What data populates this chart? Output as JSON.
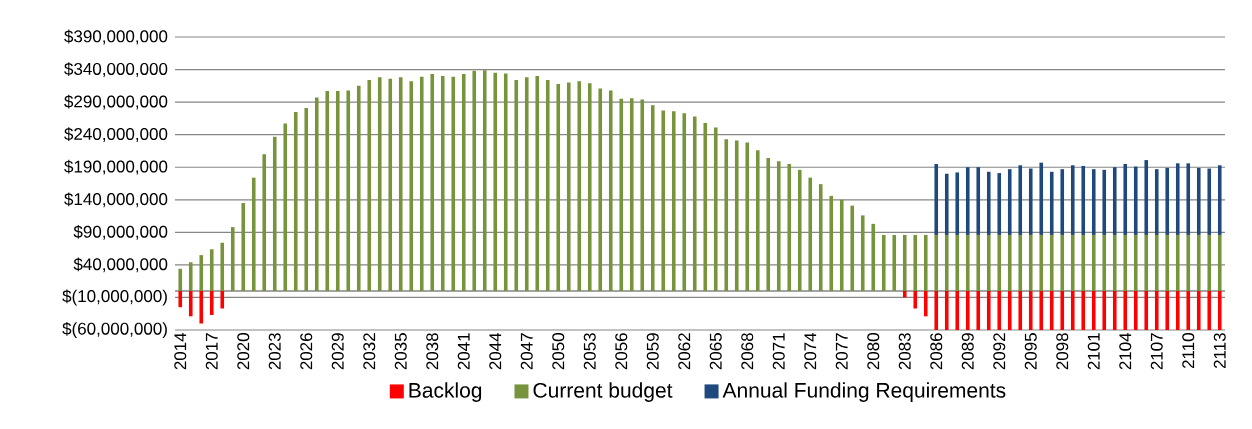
{
  "chart_data": {
    "type": "bar",
    "stacked": true,
    "categories": [
      "2014",
      null,
      null,
      "2017",
      null,
      null,
      "2020",
      null,
      null,
      "2023",
      null,
      null,
      "2026",
      null,
      null,
      "2029",
      null,
      null,
      "2032",
      null,
      null,
      "2035",
      null,
      null,
      "2038",
      null,
      null,
      "2041",
      null,
      null,
      "2044",
      null,
      null,
      "2047",
      null,
      null,
      "2050",
      null,
      null,
      "2053",
      null,
      null,
      "2056",
      null,
      null,
      "2059",
      null,
      null,
      "2062",
      null,
      null,
      "2065",
      null,
      null,
      "2068",
      null,
      null,
      "2071",
      null,
      null,
      "2074",
      null,
      null,
      "2077",
      null,
      null,
      "2080",
      null,
      null,
      "2083",
      null,
      null,
      "2086",
      null,
      null,
      "2089",
      null,
      null,
      "2092",
      null,
      null,
      "2095",
      null,
      null,
      "2098",
      null,
      null,
      "2101",
      null,
      null,
      "2104",
      null,
      null,
      "2107",
      null,
      null,
      "2110",
      null,
      null,
      "2113"
    ],
    "series": [
      {
        "name": "Backlog",
        "color": "#ff0000",
        "values": [
          -25000000,
          -39000000,
          -50000000,
          -37000000,
          -27000000,
          null,
          null,
          null,
          null,
          null,
          null,
          null,
          null,
          null,
          null,
          null,
          null,
          null,
          null,
          null,
          null,
          null,
          null,
          null,
          null,
          null,
          null,
          null,
          null,
          null,
          null,
          null,
          null,
          null,
          null,
          null,
          null,
          null,
          null,
          null,
          null,
          null,
          null,
          null,
          null,
          null,
          null,
          null,
          null,
          null,
          null,
          null,
          null,
          null,
          null,
          null,
          null,
          null,
          null,
          null,
          null,
          null,
          null,
          null,
          null,
          null,
          null,
          null,
          null,
          -10000000,
          -27000000,
          -39000000,
          -60000000,
          -60000000,
          -60000000,
          -60000000,
          -60000000,
          -60000000,
          -60000000,
          -60000000,
          -60000000,
          -60000000,
          -60000000,
          -60000000,
          -60000000,
          -60000000,
          -60000000,
          -60000000,
          -60000000,
          -60000000,
          -60000000,
          -60000000,
          -60000000,
          -60000000,
          -60000000,
          -60000000,
          -60000000,
          -60000000,
          -60000000,
          -60000000
        ]
      },
      {
        "name": "Current budget",
        "color": "#77933c",
        "values": [
          34000000,
          44000000,
          55000000,
          64000000,
          74000000,
          98000000,
          135000000,
          174000000,
          210000000,
          237000000,
          257000000,
          275000000,
          281000000,
          297000000,
          307000000,
          307000000,
          308000000,
          315000000,
          324000000,
          328000000,
          326000000,
          328000000,
          322000000,
          329000000,
          333000000,
          330000000,
          329000000,
          333000000,
          338000000,
          339000000,
          335000000,
          334000000,
          324000000,
          328000000,
          330000000,
          324000000,
          318000000,
          320000000,
          322000000,
          319000000,
          311000000,
          308000000,
          295000000,
          296000000,
          294000000,
          285000000,
          277000000,
          276000000,
          273000000,
          268000000,
          258000000,
          251000000,
          233000000,
          231000000,
          228000000,
          216000000,
          204000000,
          199000000,
          195000000,
          186000000,
          174000000,
          164000000,
          146000000,
          140000000,
          131000000,
          116000000,
          103000000,
          86000000,
          86000000,
          86000000,
          86000000,
          86000000,
          86000000,
          86000000,
          86000000,
          86000000,
          86000000,
          86000000,
          86000000,
          86000000,
          86000000,
          86000000,
          86000000,
          86000000,
          86000000,
          86000000,
          86000000,
          86000000,
          86000000,
          86000000,
          86000000,
          86000000,
          86000000,
          86000000,
          86000000,
          86000000,
          86000000,
          86000000,
          86000000,
          86000000
        ]
      },
      {
        "name": "Annual Funding Requirements",
        "color": "#1f497d",
        "values": [
          null,
          null,
          null,
          null,
          null,
          null,
          null,
          null,
          null,
          null,
          null,
          null,
          null,
          null,
          null,
          null,
          null,
          null,
          null,
          null,
          null,
          null,
          null,
          null,
          null,
          null,
          null,
          null,
          null,
          null,
          null,
          null,
          null,
          null,
          null,
          null,
          null,
          null,
          null,
          null,
          null,
          null,
          null,
          null,
          null,
          null,
          null,
          null,
          null,
          null,
          null,
          null,
          null,
          null,
          null,
          null,
          null,
          null,
          null,
          null,
          null,
          null,
          null,
          null,
          null,
          null,
          null,
          null,
          null,
          null,
          null,
          null,
          109000000,
          94000000,
          96000000,
          104000000,
          104000000,
          97000000,
          95000000,
          101000000,
          107000000,
          102000000,
          111000000,
          97000000,
          101000000,
          107000000,
          106000000,
          101000000,
          100000000,
          104000000,
          109000000,
          105000000,
          115000000,
          101000000,
          103000000,
          110000000,
          110000000,
          103000000,
          102000000,
          107000000
        ]
      }
    ],
    "ylim": [
      -60000000,
      390000000
    ],
    "yticks": [
      {
        "value": -60000000,
        "label": "$(60,000,000)"
      },
      {
        "value": -10000000,
        "label": "$(10,000,000)"
      },
      {
        "value": 40000000,
        "label": "$40,000,000"
      },
      {
        "value": 90000000,
        "label": "$90,000,000"
      },
      {
        "value": 140000000,
        "label": "$140,000,000"
      },
      {
        "value": 190000000,
        "label": "$190,000,000"
      },
      {
        "value": 240000000,
        "label": "$240,000,000"
      },
      {
        "value": 290000000,
        "label": "$290,000,000"
      },
      {
        "value": 340000000,
        "label": "$340,000,000"
      },
      {
        "value": 390000000,
        "label": "$390,000,000"
      }
    ],
    "grid": "y",
    "legend": "bottom"
  }
}
